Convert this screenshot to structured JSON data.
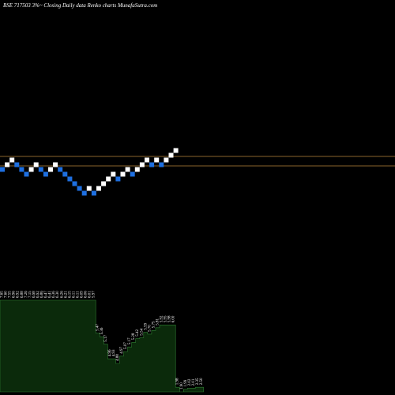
{
  "chart_data": {
    "type": "renko",
    "title": "BSE 717503 3%~   Closing Daily data  Renko  charts MunafaSutra.com",
    "reference_lines": [
      "upper",
      "lower"
    ],
    "colors": {
      "up_brick": "#ffffff",
      "down_brick": "#1e6fe0",
      "reference_line": "#b8863b",
      "volume_fill": "#0b2a0b",
      "volume_line": "#2e7d32"
    },
    "bricks": [
      {
        "dir": "down",
        "level": 6
      },
      {
        "dir": "up",
        "level": 7
      },
      {
        "dir": "up",
        "level": 8
      },
      {
        "dir": "down",
        "level": 7
      },
      {
        "dir": "down",
        "level": 6
      },
      {
        "dir": "down",
        "level": 5
      },
      {
        "dir": "up",
        "level": 6
      },
      {
        "dir": "up",
        "level": 7
      },
      {
        "dir": "down",
        "level": 6
      },
      {
        "dir": "down",
        "level": 5
      },
      {
        "dir": "up",
        "level": 6
      },
      {
        "dir": "up",
        "level": 7
      },
      {
        "dir": "down",
        "level": 6
      },
      {
        "dir": "down",
        "level": 5
      },
      {
        "dir": "down",
        "level": 4
      },
      {
        "dir": "down",
        "level": 3
      },
      {
        "dir": "down",
        "level": 2
      },
      {
        "dir": "down",
        "level": 1
      },
      {
        "dir": "up",
        "level": 2
      },
      {
        "dir": "down",
        "level": 1
      },
      {
        "dir": "up",
        "level": 2
      },
      {
        "dir": "up",
        "level": 3
      },
      {
        "dir": "up",
        "level": 4
      },
      {
        "dir": "up",
        "level": 5
      },
      {
        "dir": "down",
        "level": 4
      },
      {
        "dir": "up",
        "level": 5
      },
      {
        "dir": "up",
        "level": 6
      },
      {
        "dir": "down",
        "level": 5
      },
      {
        "dir": "up",
        "level": 6
      },
      {
        "dir": "up",
        "level": 7
      },
      {
        "dir": "up",
        "level": 8
      },
      {
        "dir": "down",
        "level": 7
      },
      {
        "dir": "up",
        "level": 8
      },
      {
        "dir": "down",
        "level": 7
      },
      {
        "dir": "up",
        "level": 8
      },
      {
        "dir": "up",
        "level": 9
      },
      {
        "dir": "up",
        "level": 10
      }
    ],
    "volume": [
      {
        "value": 100,
        "label": "7.65"
      },
      {
        "value": 100,
        "label": "7.60"
      },
      {
        "value": 100,
        "label": "7.55"
      },
      {
        "value": 100,
        "label": "6.96"
      },
      {
        "value": 100,
        "label": "6.92"
      },
      {
        "value": 100,
        "label": "6.88"
      },
      {
        "value": 100,
        "label": "7.26"
      },
      {
        "value": 100,
        "label": "7.15"
      },
      {
        "value": 100,
        "label": "6.98"
      },
      {
        "value": 100,
        "label": "6.92"
      },
      {
        "value": 100,
        "label": "6.86"
      },
      {
        "value": 100,
        "label": "6.47"
      },
      {
        "value": 100,
        "label": "6.41"
      },
      {
        "value": 100,
        "label": "6.36"
      },
      {
        "value": 100,
        "label": "6.30"
      },
      {
        "value": 100,
        "label": "6.26"
      },
      {
        "value": 100,
        "label": "6.21"
      },
      {
        "value": 100,
        "label": "6.15"
      },
      {
        "value": 100,
        "label": "6.11"
      },
      {
        "value": 100,
        "label": "6.11"
      },
      {
        "value": 100,
        "label": "6.09"
      },
      {
        "value": 100,
        "label": "6.06"
      },
      {
        "value": 100,
        "label": "6.01"
      },
      {
        "value": 100,
        "label": "5.97"
      },
      {
        "value": 64,
        "label": "5.47"
      },
      {
        "value": 60,
        "label": "5.36"
      },
      {
        "value": 52,
        "label": "5.17"
      },
      {
        "value": 36,
        "label": "4.96"
      },
      {
        "value": 36,
        "label": "4.93"
      },
      {
        "value": 31,
        "label": "4.88"
      },
      {
        "value": 39,
        "label": "4.97"
      },
      {
        "value": 44,
        "label": "5.07"
      },
      {
        "value": 49,
        "label": "5.17"
      },
      {
        "value": 54,
        "label": "5.28"
      },
      {
        "value": 58,
        "label": "5.42"
      },
      {
        "value": 59,
        "label": "5.54"
      },
      {
        "value": 65,
        "label": "5.59"
      },
      {
        "value": 63,
        "label": "5.70"
      },
      {
        "value": 67,
        "label": "5.75"
      },
      {
        "value": 70,
        "label": "5.81"
      },
      {
        "value": 73,
        "label": "5.92"
      },
      {
        "value": 73,
        "label": "5.95"
      },
      {
        "value": 73,
        "label": "5.98"
      },
      {
        "value": 73,
        "label": "6.00"
      },
      {
        "value": 5,
        "label": "1.98"
      },
      {
        "value": 0,
        "label": "1.90"
      },
      {
        "value": 3,
        "label": "1.99"
      },
      {
        "value": 4,
        "label": "2.02"
      },
      {
        "value": 4,
        "label": "2.01"
      },
      {
        "value": 5,
        "label": "2.35"
      },
      {
        "value": 5,
        "label": "2.50"
      }
    ]
  }
}
